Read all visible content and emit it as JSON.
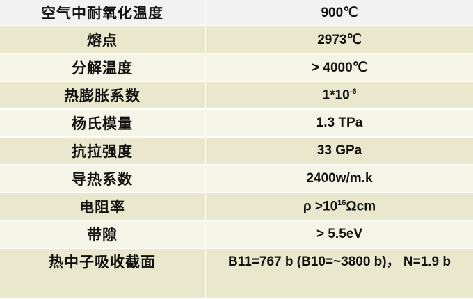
{
  "rows": [
    {
      "property": "空气中耐氧化温度",
      "value": "900℃"
    },
    {
      "property": "熔点",
      "value": "2973℃"
    },
    {
      "property": "分解温度",
      "value": "> 4000℃"
    },
    {
      "property": "热膨胀系数",
      "value": "1*10",
      "value_sup": "-6"
    },
    {
      "property": "杨氏模量",
      "value": "1.3 TPa"
    },
    {
      "property": "抗拉强度",
      "value": "33 GPa"
    },
    {
      "property": "导热系数",
      "value": "2400w/m.k"
    },
    {
      "property": "电阻率",
      "value": "ρ >10",
      "value_sup": "16",
      "value_suffix": "Ωcm"
    },
    {
      "property": "带隙",
      "value": "> 5.5eV"
    },
    {
      "property": "热中子吸收截面",
      "value": "B11=767 b (B10=~3800 b)， N=1.9 b"
    }
  ],
  "colors": {
    "header_row": "#f2f2f2",
    "band_dark": "#e9e8cc",
    "band_light": "#f5f5e7"
  }
}
